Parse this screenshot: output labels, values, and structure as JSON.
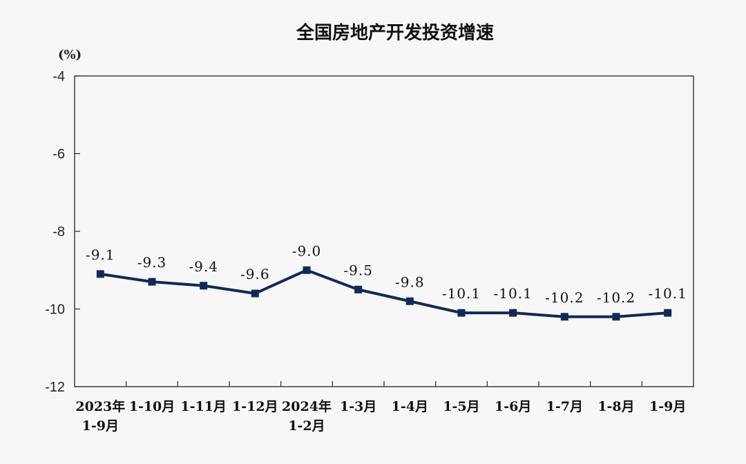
{
  "chart_data": {
    "type": "line",
    "title": "全国房地产开发投资增速",
    "unit": "(%)",
    "categories": [
      "2023年\n1-9月",
      "1-10月",
      "1-11月",
      "1-12月",
      "2024年\n1-2月",
      "1-3月",
      "1-4月",
      "1-5月",
      "1-6月",
      "1-7月",
      "1-8月",
      "1-9月"
    ],
    "series": [
      {
        "values": [
          -9.1,
          -9.3,
          -9.4,
          -9.6,
          -9.0,
          -9.5,
          -9.8,
          -10.1,
          -10.1,
          -10.2,
          -10.2,
          -10.1
        ],
        "labels": [
          "-9.1",
          "-9.3",
          "-9.4",
          "-9.6",
          "-9.0",
          "-9.5",
          "-9.8",
          "-10.1",
          "-10.1",
          "-10.2",
          "-10.2",
          "-10.1"
        ]
      }
    ],
    "yticks": [
      "-4",
      "-6",
      "-8",
      "-10",
      "-12"
    ],
    "ylim": [
      -12,
      -4
    ],
    "grid": false,
    "colors": {
      "line": "#112a55",
      "axis": "#222222"
    }
  }
}
